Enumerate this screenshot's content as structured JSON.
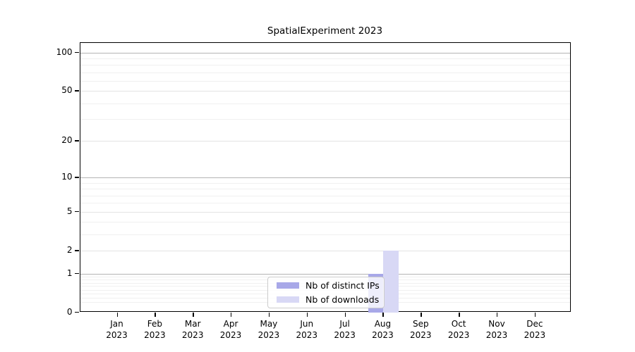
{
  "title": "SpatialExperiment 2023",
  "chart_data": {
    "type": "bar",
    "title": "SpatialExperiment 2023",
    "categories": [
      "Jan 2023",
      "Feb 2023",
      "Mar 2023",
      "Apr 2023",
      "May 2023",
      "Jun 2023",
      "Jul 2023",
      "Aug 2023",
      "Sep 2023",
      "Oct 2023",
      "Nov 2023",
      "Dec 2023"
    ],
    "series": [
      {
        "name": "Nb of distinct IPs",
        "color": "#a8a8e8",
        "values": [
          0,
          0,
          0,
          0,
          0,
          0,
          0,
          1,
          0,
          0,
          0,
          0
        ]
      },
      {
        "name": "Nb of downloads",
        "color": "#d8d8f5",
        "values": [
          0,
          0,
          0,
          0,
          0,
          0,
          0,
          2,
          0,
          0,
          0,
          0
        ]
      }
    ],
    "xlabel": "",
    "ylabel": "",
    "yscale": "log1p",
    "ylim": [
      0,
      113
    ],
    "ytick_values": [
      0,
      1,
      2,
      5,
      10,
      20,
      50,
      100
    ],
    "ytick_labels": [
      "0",
      "1",
      "2",
      "5",
      "10",
      "20",
      "50",
      "100"
    ],
    "ytick_major_grid_values": [
      1,
      10,
      100
    ],
    "ytick_light_grid_values": [
      2,
      5,
      20,
      50
    ],
    "ytick_minor_grid_values": [
      0.2,
      0.3,
      0.4,
      0.5,
      0.6,
      0.7,
      0.8,
      0.9,
      3,
      4,
      6,
      7,
      8,
      9,
      30,
      40,
      60,
      70,
      80,
      90
    ],
    "grid": "on",
    "legend_position": "bottom-center"
  },
  "legend": {
    "items": [
      {
        "label": "Nb of distinct IPs",
        "color": "#a8a8e8"
      },
      {
        "label": "Nb of downloads",
        "color": "#d8d8f5"
      }
    ]
  }
}
